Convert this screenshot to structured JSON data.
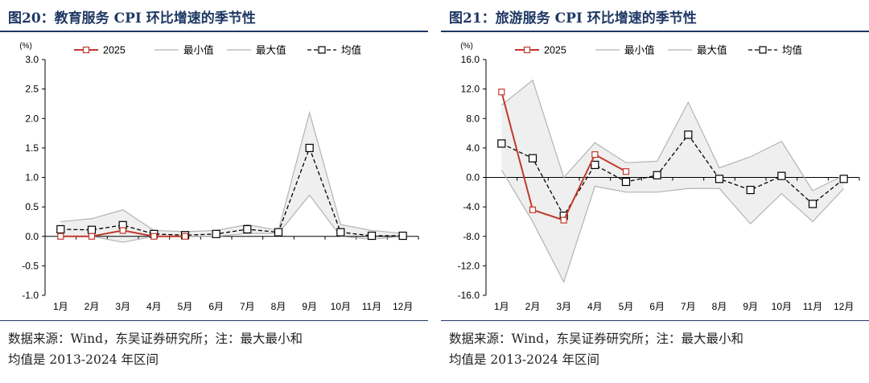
{
  "charts": [
    {
      "fig_title": "图20：教育服务 CPI 环比增速的季节性",
      "source_line1": "数据来源：Wind，东吴证券研究所；注：最大最小和",
      "source_line2": "均值是 2013-2024 年区间",
      "chart_data": {
        "type": "line",
        "unit_label": "(%)",
        "categories": [
          "1月",
          "2月",
          "3月",
          "4月",
          "5月",
          "6月",
          "7月",
          "8月",
          "9月",
          "10月",
          "11月",
          "12月"
        ],
        "ylim": [
          -1.0,
          3.0
        ],
        "yticks": [
          3.0,
          2.5,
          2.0,
          1.5,
          1.0,
          0.5,
          0.0,
          -0.5,
          -1.0
        ],
        "ytick_labels": [
          "3.0",
          "2.5",
          "2.0",
          "1.5",
          "1.0",
          "0.5",
          "0.0",
          "-0.5",
          "-1.0"
        ],
        "legend_placement": "top",
        "series": [
          {
            "name": "2025",
            "values": [
              0.0,
              0.0,
              0.1,
              0.0,
              0.0,
              null,
              null,
              null,
              null,
              null,
              null,
              null
            ],
            "color": "#c0392b"
          },
          {
            "name": "最小值",
            "values": [
              0.0,
              0.0,
              -0.1,
              0.0,
              0.0,
              0.0,
              0.05,
              0.05,
              0.7,
              0.0,
              -0.05,
              0.0
            ],
            "color": "#b4b4b4"
          },
          {
            "name": "最大值",
            "values": [
              0.25,
              0.3,
              0.45,
              0.1,
              0.08,
              0.1,
              0.2,
              0.1,
              2.1,
              0.2,
              0.1,
              0.05
            ],
            "color": "#b4b4b4"
          },
          {
            "name": "均值",
            "values": [
              0.12,
              0.11,
              0.19,
              0.04,
              0.02,
              0.04,
              0.12,
              0.07,
              1.5,
              0.07,
              0.01,
              0.01
            ],
            "color": "#000000"
          }
        ]
      }
    },
    {
      "fig_title": "图21：旅游服务 CPI 环比增速的季节性",
      "source_line1": "数据来源：Wind，东吴证券研究所；注：最大最小和",
      "source_line2": "均值是 2013-2024 年区间",
      "chart_data": {
        "type": "line",
        "unit_label": "(%)",
        "categories": [
          "1月",
          "2月",
          "3月",
          "4月",
          "5月",
          "6月",
          "7月",
          "8月",
          "9月",
          "10月",
          "11月",
          "12月"
        ],
        "ylim": [
          -16.0,
          16.0
        ],
        "yticks": [
          16,
          12,
          8,
          4,
          0,
          -4,
          -8,
          -12,
          -16
        ],
        "ytick_labels": [
          "16.0",
          "12.0",
          "8.0",
          "4.0",
          "0.0",
          "-4.0",
          "-8.0",
          "-12.0",
          "-16.0"
        ],
        "legend_placement": "top",
        "series": [
          {
            "name": "2025",
            "values": [
              11.6,
              -4.4,
              -5.8,
              3.1,
              0.8,
              null,
              null,
              null,
              null,
              null,
              null,
              null
            ],
            "color": "#c0392b"
          },
          {
            "name": "最小值",
            "values": [
              1.0,
              -6.0,
              -14.2,
              -1.2,
              -2.0,
              -2.0,
              -1.5,
              -1.5,
              -6.3,
              -2.2,
              -6.0,
              -1.5
            ],
            "color": "#b4b4b4"
          },
          {
            "name": "最大值",
            "values": [
              9.8,
              13.2,
              0.0,
              4.7,
              2.0,
              2.2,
              10.2,
              1.3,
              2.8,
              4.9,
              -1.8,
              0.3
            ],
            "color": "#b4b4b4"
          },
          {
            "name": "均值",
            "values": [
              4.6,
              2.6,
              -5.2,
              1.7,
              -0.6,
              0.3,
              5.8,
              -0.2,
              -1.7,
              0.2,
              -3.6,
              -0.2
            ],
            "color": "#000000"
          }
        ]
      }
    }
  ]
}
